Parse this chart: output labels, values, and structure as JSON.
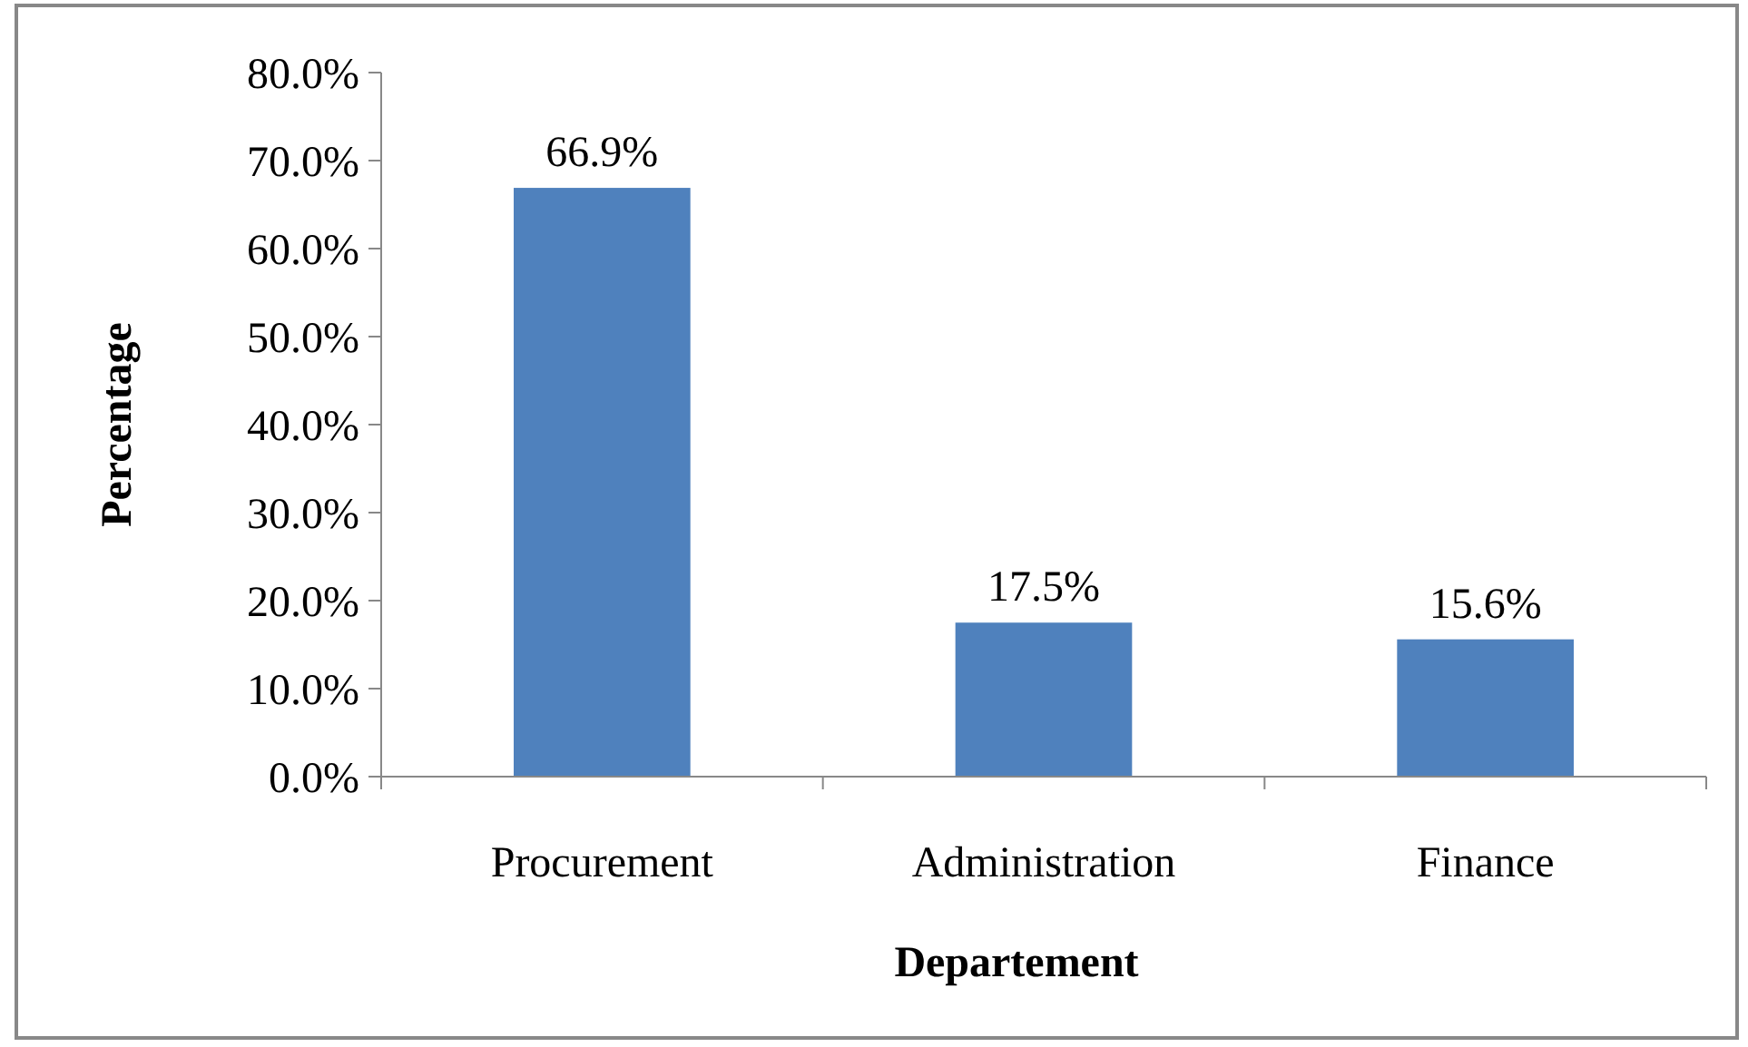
{
  "chart_data": {
    "type": "bar",
    "xlabel": "Departement",
    "ylabel": "Percentage",
    "categories": [
      "Procurement",
      "Administration",
      "Finance"
    ],
    "values": [
      66.9,
      17.5,
      15.6
    ],
    "color": "#4f81bd",
    "value_labels": [
      "66.9%",
      "17.5%",
      "15.6%"
    ],
    "ylim": [
      0,
      80
    ],
    "yticks": [
      {
        "value": 0,
        "label": "0.0%"
      },
      {
        "value": 10,
        "label": "10.0%"
      },
      {
        "value": 20,
        "label": "20.0%"
      },
      {
        "value": 30,
        "label": "30.0%"
      },
      {
        "value": 40,
        "label": "40.0%"
      },
      {
        "value": 50,
        "label": "50.0%"
      },
      {
        "value": 60,
        "label": "60.0%"
      },
      {
        "value": 70,
        "label": "70.0%"
      },
      {
        "value": 80,
        "label": "80.0%"
      }
    ],
    "grid": false
  }
}
